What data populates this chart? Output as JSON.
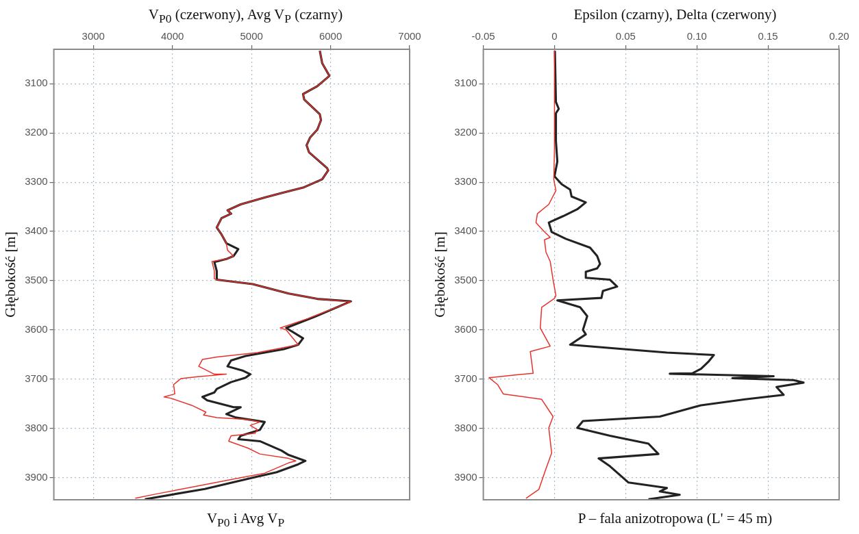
{
  "chart_data": [
    {
      "type": "line",
      "title": "V$_{P0}$ (czerwony), Avg V$_{P}$ (czarny)",
      "xlabel": "V$_{P0}$ i Avg V$_{P}$",
      "ylabel": "Głębokość [m]",
      "xlim": [
        2500,
        7000
      ],
      "xticks": [
        3000,
        4000,
        5000,
        6000,
        7000
      ],
      "ylim": [
        3945,
        3030
      ],
      "yticks": [
        3100,
        3200,
        3300,
        3400,
        3500,
        3600,
        3700,
        3800,
        3900
      ],
      "grid": true,
      "series": [
        {
          "color": "#222222",
          "x": [
            5864,
            5894,
            5985,
            5833,
            5652,
            5667,
            5864,
            5879,
            5833,
            5742,
            5697,
            5727,
            5955,
            5970,
            5894,
            5652,
            5379,
            5167,
            4864,
            4697,
            4742,
            4621,
            4561,
            4621,
            4682,
            4833,
            4773,
            4682,
            4530,
            4560,
            4561,
            5015,
            5470,
            5833,
            6258,
            5803,
            5439,
            5652,
            5591,
            5409,
            4924,
            4742,
            4697,
            4894,
            4985,
            4924,
            4742,
            4561,
            4530,
            4379,
            4439,
            4773,
            4864,
            4682,
            4803,
            5167,
            5106,
            4864,
            4833,
            5106,
            5379,
            5470,
            5682,
            5591,
            5318,
            5015,
            4409,
            3652
          ],
          "values": [
            3033,
            3058,
            3084,
            3105,
            3121,
            3132,
            3162,
            3174,
            3193,
            3209,
            3225,
            3239,
            3271,
            3276,
            3294,
            3311,
            3322,
            3331,
            3345,
            3357,
            3364,
            3373,
            3392,
            3406,
            3424,
            3436,
            3450,
            3456,
            3462,
            3480,
            3498,
            3507,
            3526,
            3537,
            3542,
            3573,
            3596,
            3617,
            3630,
            3639,
            3653,
            3662,
            3674,
            3683,
            3690,
            3697,
            3706,
            3720,
            3727,
            3736,
            3743,
            3757,
            3757,
            3771,
            3778,
            3787,
            3803,
            3815,
            3822,
            3826,
            3845,
            3854,
            3866,
            3873,
            3889,
            3900,
            3923,
            3944
          ]
        },
        {
          "color": "#e8312b",
          "x": [
            5864,
            5894,
            5985,
            5833,
            5652,
            5667,
            5864,
            5879,
            5833,
            5742,
            5697,
            5727,
            5955,
            5970,
            5894,
            5652,
            5379,
            5167,
            4864,
            4697,
            4742,
            4621,
            4561,
            4621,
            4682,
            4697,
            4773,
            4682,
            4500,
            4530,
            4530,
            4561,
            5015,
            5470,
            5833,
            6258,
            5773,
            5712,
            5364,
            5439,
            5591,
            5470,
            5076,
            4561,
            4379,
            4333,
            4530,
            4682,
            4318,
            4106,
            4015,
            4030,
            3894,
            3985,
            4242,
            4424,
            4394,
            4561,
            4955,
            5106,
            4985,
            5076,
            5045,
            4742,
            4712,
            4955,
            5106,
            5470,
            5561,
            5470,
            5167,
            4864,
            4258,
            3803,
            3530
          ],
          "values": [
            3033,
            3058,
            3084,
            3105,
            3121,
            3132,
            3162,
            3174,
            3193,
            3209,
            3225,
            3239,
            3271,
            3276,
            3294,
            3311,
            3322,
            3331,
            3345,
            3357,
            3364,
            3373,
            3392,
            3406,
            3424,
            3438,
            3450,
            3456,
            3461,
            3480,
            3496,
            3498,
            3507,
            3526,
            3537,
            3543,
            3573,
            3577,
            3596,
            3600,
            3630,
            3634,
            3646,
            3655,
            3660,
            3674,
            3690,
            3690,
            3695,
            3699,
            3711,
            3730,
            3736,
            3739,
            3753,
            3767,
            3773,
            3778,
            3782,
            3787,
            3794,
            3803,
            3810,
            3815,
            3826,
            3840,
            3852,
            3861,
            3866,
            3870,
            3891,
            3900,
            3919,
            3933,
            3942
          ]
        }
      ]
    },
    {
      "type": "line",
      "title": "Epsilon (czarny), Delta (czerwony)",
      "xlabel": "P – fala anizotropowa (L' = 45 m)",
      "ylabel": "Głębokość [m]",
      "xlim": [
        -0.05,
        0.2
      ],
      "xticks": [
        -0.05,
        0,
        0.05,
        {
          "value": 0.1,
          "label": "0.10"
        },
        0.15,
        {
          "value": 0.2,
          "label": "0.20"
        }
      ],
      "ylim": [
        3945,
        3030
      ],
      "yticks": [
        3100,
        3200,
        3300,
        3400,
        3500,
        3600,
        3700,
        3800,
        3900
      ],
      "grid": true,
      "series": [
        {
          "color": "#222222",
          "x": [
            0.0003,
            0.001,
            0.003,
            0.001,
            0.001,
            0.002,
            0.0,
            0.005,
            0.011,
            0.012,
            0.022,
            0.016,
            0.006,
            -0.004,
            -0.002,
            0.008,
            0.025,
            0.03,
            0.032,
            0.03,
            0.022,
            0.022,
            0.039,
            0.044,
            0.034,
            0.033,
            0.002,
            0.018,
            0.023,
            0.02,
            0.022,
            0.011,
            0.049,
            0.079,
            0.112,
            0.108,
            0.103,
            0.097,
            0.081,
            0.154,
            0.125,
            0.168,
            0.175,
            0.156,
            0.161,
            0.134,
            0.103,
            0.074,
            0.02,
            0.016,
            0.039,
            0.066,
            0.073,
            0.031,
            0.039,
            0.052,
            0.079,
            0.074,
            0.088,
            0.066
          ],
          "values": [
            3033,
            3137,
            3151,
            3160,
            3216,
            3258,
            3288,
            3304,
            3315,
            3329,
            3341,
            3355,
            3369,
            3382,
            3401,
            3415,
            3433,
            3450,
            3466,
            3475,
            3482,
            3494,
            3498,
            3512,
            3521,
            3535,
            3540,
            3554,
            3572,
            3600,
            3609,
            3630,
            3639,
            3646,
            3651,
            3665,
            3679,
            3688,
            3689,
            3694,
            3698,
            3702,
            3707,
            3716,
            3732,
            3741,
            3753,
            3776,
            3785,
            3799,
            3815,
            3831,
            3852,
            3861,
            3877,
            3910,
            3921,
            3928,
            3935,
            3944
          ]
        },
        {
          "color": "#e8312b",
          "x": [
            0.0,
            0.0,
            -0.0005,
            0.001,
            -0.004,
            -0.012,
            -0.013,
            -0.007,
            -0.003,
            -0.007,
            -0.006,
            -0.003,
            -0.001,
            0.001,
            0.0,
            -0.009,
            -0.01,
            -0.003,
            -0.017,
            -0.015,
            -0.046,
            -0.04,
            -0.036,
            -0.009,
            -0.001,
            -0.004,
            -0.002,
            -0.006,
            -0.011,
            -0.02
          ],
          "values": [
            3033,
            3230,
            3294,
            3317,
            3345,
            3364,
            3382,
            3401,
            3412,
            3417,
            3442,
            3461,
            3498,
            3530,
            3536,
            3554,
            3596,
            3633,
            3644,
            3688,
            3697,
            3711,
            3730,
            3741,
            3776,
            3799,
            3850,
            3882,
            3924,
            3942
          ]
        }
      ]
    }
  ]
}
